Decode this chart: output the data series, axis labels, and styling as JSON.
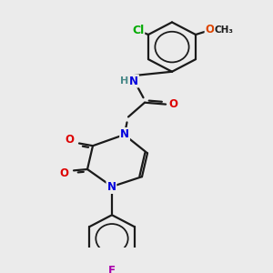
{
  "bg_color": "#ebebeb",
  "bond_color": "#1a1a1a",
  "bond_width": 1.6,
  "colors": {
    "N": "#0000dd",
    "O": "#dd0000",
    "F": "#aa00aa",
    "Cl": "#00aa00",
    "H": "#4a8a8a",
    "C": "#1a1a1a",
    "methoxy_O": "#dd4400"
  },
  "font_size": 8.5,
  "fig_bg": "#ebebeb"
}
